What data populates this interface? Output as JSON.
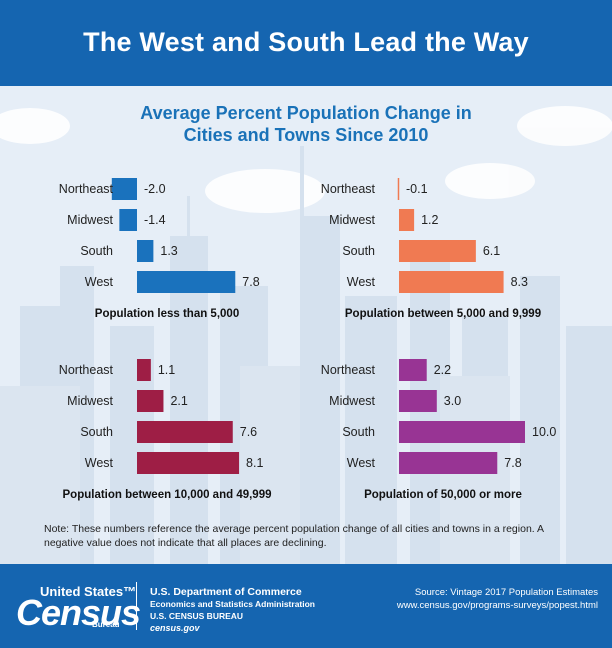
{
  "header": {
    "title": "The West and South Lead the Way"
  },
  "subtitle": [
    "Average Percent Population Change in",
    "Cities and Towns Since 2010"
  ],
  "chart_data": [
    {
      "type": "bar",
      "title": "Population less than 5,000",
      "categories": [
        "Northeast",
        "Midwest",
        "South",
        "West"
      ],
      "values": [
        -2.0,
        -1.4,
        1.3,
        7.8
      ],
      "labels": [
        "-2.0",
        "-1.4",
        "1.3",
        "7.8"
      ],
      "color": "#1a72bd"
    },
    {
      "type": "bar",
      "title": "Population between 5,000 and 9,999",
      "categories": [
        "Northeast",
        "Midwest",
        "South",
        "West"
      ],
      "values": [
        -0.1,
        1.2,
        6.1,
        8.3
      ],
      "labels": [
        "-0.1",
        "1.2",
        "6.1",
        "8.3"
      ],
      "color": "#f07a52"
    },
    {
      "type": "bar",
      "title": "Population between 10,000 and 49,999",
      "categories": [
        "Northeast",
        "Midwest",
        "South",
        "West"
      ],
      "values": [
        1.1,
        2.1,
        7.6,
        8.1
      ],
      "labels": [
        "1.1",
        "2.1",
        "7.6",
        "8.1"
      ],
      "color": "#9e1e45"
    },
    {
      "type": "bar",
      "title": "Population of 50,000 or more",
      "categories": [
        "Northeast",
        "Midwest",
        "South",
        "West"
      ],
      "values": [
        2.2,
        3.0,
        10.0,
        7.8
      ],
      "labels": [
        "2.2",
        "3.0",
        "10.0",
        "7.8"
      ],
      "color": "#983494"
    }
  ],
  "note": "Note: These numbers reference the average percent population change of all cities and towns in a region. A negative value does not indicate that all places are declining.",
  "footer": {
    "logo_top": "United States™",
    "logo_main": "Census",
    "logo_sub": "Bureau",
    "dept_line1": "U.S. Department of Commerce",
    "dept_line2": "Economics and Statistics Administration",
    "dept_line3": "U.S. CENSUS BUREAU",
    "dept_line4": "census.gov",
    "source_line1": "Source: Vintage 2017 Population Estimates",
    "source_line2": "www.census.gov/programs-surveys/popest.html"
  }
}
